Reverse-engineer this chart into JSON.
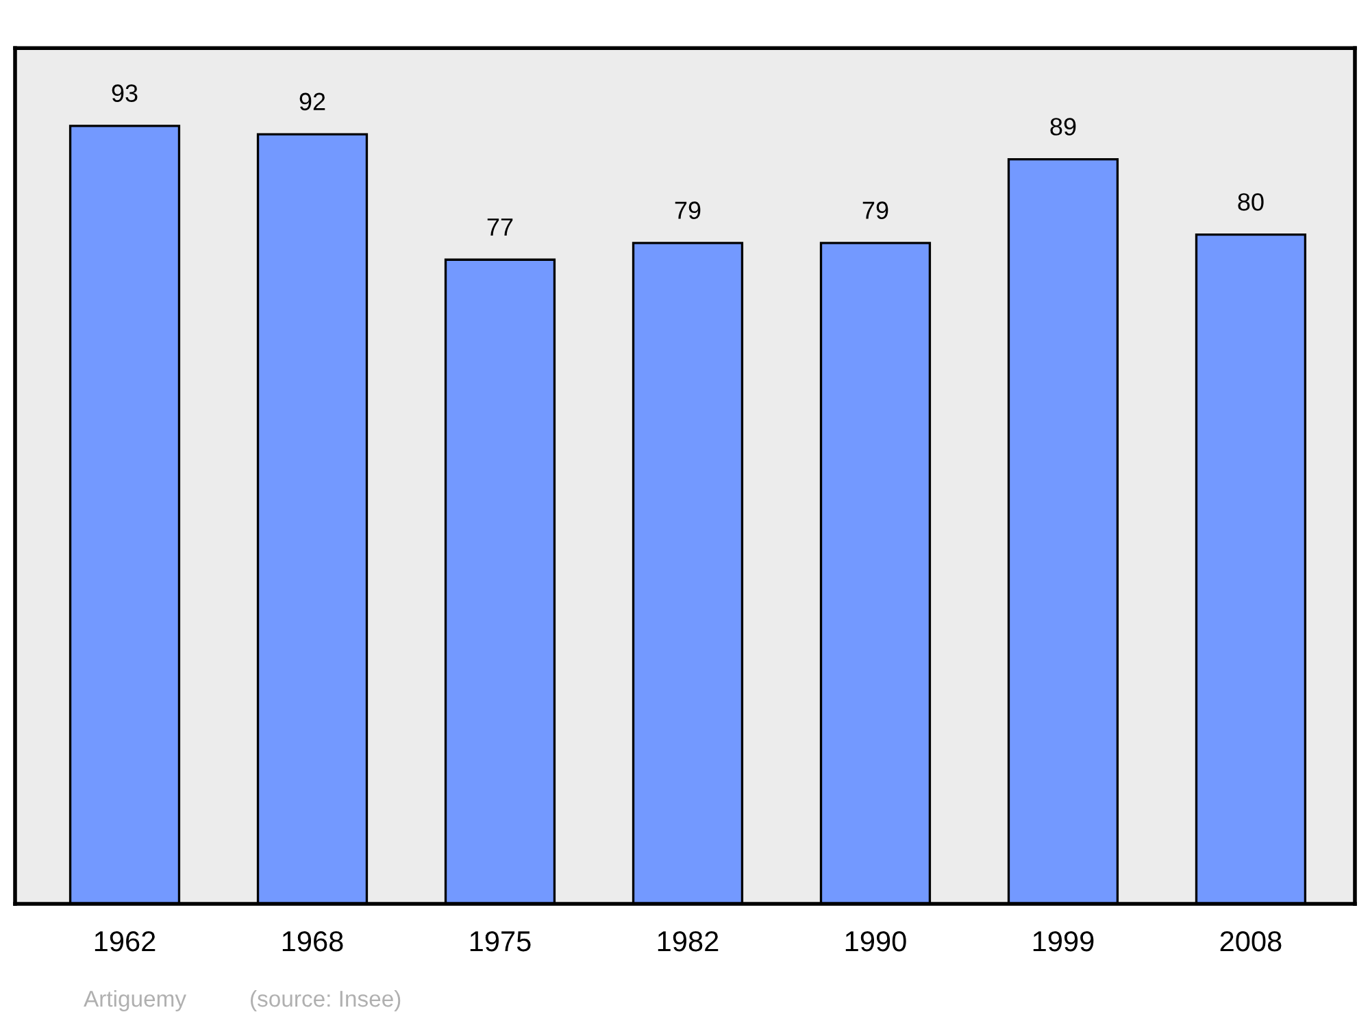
{
  "chart_data": {
    "type": "bar",
    "categories": [
      "1962",
      "1968",
      "1975",
      "1982",
      "1990",
      "1999",
      "2008"
    ],
    "values": [
      93,
      92,
      77,
      79,
      79,
      89,
      80
    ],
    "color": "#7399ff",
    "data_labels": true,
    "grid": false,
    "legend": false,
    "annotations": [
      "Artiguemy",
      "(source: Insee)"
    ]
  }
}
